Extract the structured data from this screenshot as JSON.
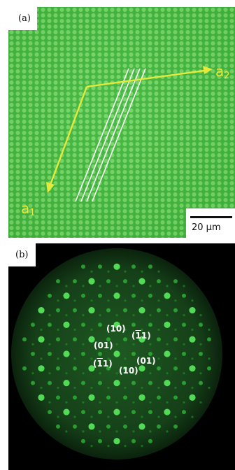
{
  "panel_a": {
    "label": "(a)",
    "vector_a1": {
      "letter": "a",
      "subscript": "1"
    },
    "vector_a2": {
      "letter": "a",
      "subscript": "2"
    },
    "scale_bar": "20 μm",
    "colors": {
      "background": "#3fb63c",
      "droplet": "#74d564",
      "vector": "#e7e93a",
      "lines": "#ffffff"
    }
  },
  "panel_b": {
    "label": "(b)",
    "indices": [
      {
        "pre": "(10)",
        "bar": "",
        "post": ""
      },
      {
        "pre": "(",
        "bar": "1",
        "post": "1)"
      },
      {
        "pre": "(01)",
        "bar": "",
        "post": ""
      },
      {
        "pre": "(01)",
        "bar": "",
        "post": ""
      },
      {
        "pre": "(",
        "bar": "1",
        "post": "1)"
      },
      {
        "pre": "(10)",
        "bar": "",
        "post": ""
      }
    ],
    "colors": {
      "background": "#000000",
      "disc": "#1a4a1c",
      "spot": "#39d13e",
      "text": "#ffffff"
    }
  }
}
